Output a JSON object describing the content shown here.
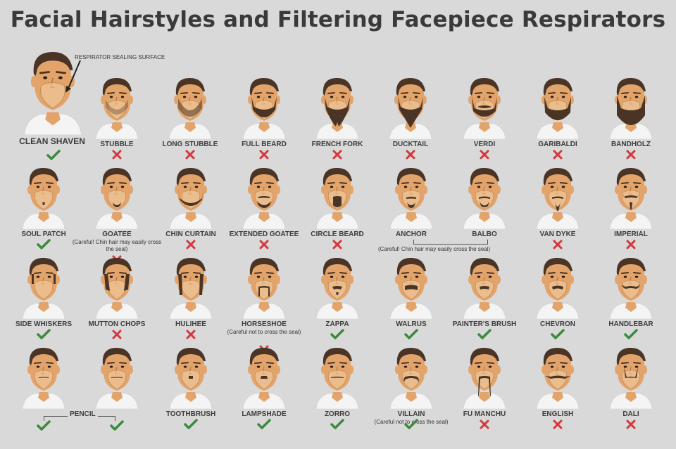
{
  "title": "Facial Hairstyles and Filtering Facepiece Respirators",
  "colors": {
    "background": "#d9d9d9",
    "skin": "#e2a46a",
    "hair": "#4a3426",
    "respirator": "#f3d2a8",
    "shirt": "#f4f4f4",
    "check": "#3d8a3d",
    "cross": "#d9353b"
  },
  "icons": {
    "ok": "check-icon",
    "not_ok": "cross-icon"
  },
  "clean_shaven": {
    "label": "CLEAN SHAVEN",
    "callout": "RESPIRATOR SEALING SURFACE",
    "ok": true
  },
  "rows": [
    [
      {
        "label": "STUBBLE",
        "ok": false,
        "style": "stubble"
      },
      {
        "label": "LONG STUBBLE",
        "ok": false,
        "style": "longstubble"
      },
      {
        "label": "FULL BEARD",
        "ok": false,
        "style": "fullbeard"
      },
      {
        "label": "FRENCH FORK",
        "ok": false,
        "style": "frenchfork"
      },
      {
        "label": "DUCKTAIL",
        "ok": false,
        "style": "ducktail"
      },
      {
        "label": "VERDI",
        "ok": false,
        "style": "verdi"
      },
      {
        "label": "GARIBALDI",
        "ok": false,
        "style": "garibaldi"
      },
      {
        "label": "BANDHOLZ",
        "ok": false,
        "style": "bandholz"
      }
    ],
    [
      {
        "label": "SOUL PATCH",
        "ok": true,
        "style": "soulpatch"
      },
      {
        "label": "GOATEE",
        "ok": false,
        "style": "goatee",
        "note": "(Careful! Chin hair may easily cross the seal)"
      },
      {
        "label": "CHIN CURTAIN",
        "ok": false,
        "style": "chincurtain"
      },
      {
        "label": "EXTENDED GOATEE",
        "ok": false,
        "style": "extgoatee"
      },
      {
        "label": "CIRCLE BEARD",
        "ok": false,
        "style": "circle"
      },
      {
        "label": "ANCHOR",
        "ok": null,
        "style": "anchor"
      },
      {
        "label": "BALBO",
        "ok": null,
        "style": "balbo"
      },
      {
        "label": "VAN DYKE",
        "ok": false,
        "style": "vandyke"
      },
      {
        "label": "IMPERIAL",
        "ok": false,
        "style": "imperial"
      }
    ],
    [
      {
        "label": "SIDE WHISKERS",
        "ok": true,
        "style": "whiskers"
      },
      {
        "label": "MUTTON CHOPS",
        "ok": false,
        "style": "mutton"
      },
      {
        "label": "HULIHEE",
        "ok": false,
        "style": "hulihee"
      },
      {
        "label": "HORSESHOE",
        "ok": false,
        "style": "horseshoe",
        "note": "(Careful not to cross the seal)"
      },
      {
        "label": "ZAPPA",
        "ok": true,
        "style": "zappa"
      },
      {
        "label": "WALRUS",
        "ok": true,
        "style": "walrus"
      },
      {
        "label": "PAINTER'S BRUSH",
        "ok": true,
        "style": "painter"
      },
      {
        "label": "CHEVRON",
        "ok": true,
        "style": "chevron"
      },
      {
        "label": "HANDLEBAR",
        "ok": true,
        "style": "handlebar"
      }
    ],
    [
      {
        "label": "",
        "ok": true,
        "style": "pencil1"
      },
      {
        "label": "",
        "ok": true,
        "style": "pencil2"
      },
      {
        "label": "TOOTHBRUSH",
        "ok": true,
        "style": "toothbrush"
      },
      {
        "label": "LAMPSHADE",
        "ok": true,
        "style": "lampshade"
      },
      {
        "label": "ZORRO",
        "ok": true,
        "style": "zorro"
      },
      {
        "label": "VILLAIN",
        "ok": true,
        "style": "villain",
        "note": "(Careful not to cross the seal)"
      },
      {
        "label": "FU MANCHU",
        "ok": false,
        "style": "fumanchu"
      },
      {
        "label": "ENGLISH",
        "ok": false,
        "style": "english"
      },
      {
        "label": "DALI",
        "ok": false,
        "style": "dali"
      }
    ]
  ],
  "groups": {
    "anchor_balbo_note": "(Careful! Chin hair may easily cross the seal)",
    "pencil_label": "PENCIL"
  }
}
